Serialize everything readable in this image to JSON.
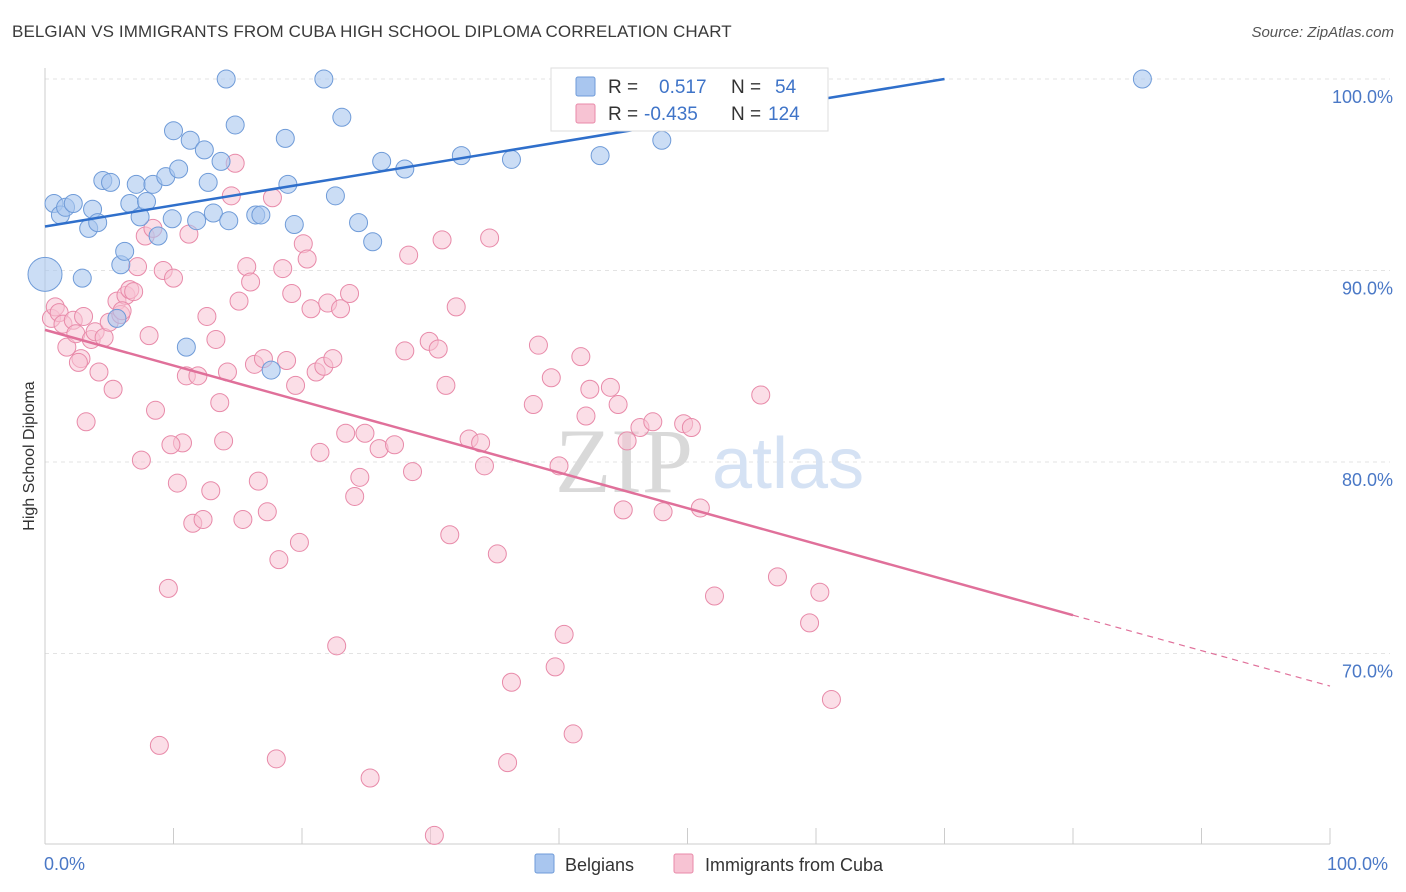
{
  "title": "BELGIAN VS IMMIGRANTS FROM CUBA HIGH SCHOOL DIPLOMA CORRELATION CHART",
  "source": "Source: ZipAtlas.com",
  "watermark": {
    "zip": "ZIP",
    "atlas": "atlas"
  },
  "legend_top": {
    "r_label": "R =",
    "n_label": "N =",
    "rows": [
      {
        "r": "0.517",
        "n": "54",
        "color": "#a9c6ef"
      },
      {
        "r": "-0.435",
        "n": "124",
        "color": "#f4b4c8"
      }
    ]
  },
  "colors": {
    "belgians_fill": "#a9c6ef",
    "belgians_stroke": "#6f9bd8",
    "belgians_line": "#2f6fcb",
    "cuba_fill": "#f7c3d3",
    "cuba_stroke": "#e88aa9",
    "cuba_line": "#e0709a",
    "grid": "#e3e3e3",
    "axis_text": "#4a78c6"
  },
  "chart_data": {
    "type": "scatter",
    "title": "BELGIAN VS IMMIGRANTS FROM CUBA HIGH SCHOOL DIPLOMA CORRELATION CHART",
    "xlabel": "",
    "ylabel": "High School Diploma",
    "x_tick_labels": [
      "0.0%",
      "100.0%"
    ],
    "y_tick_labels": [
      "100.0%",
      "90.0%",
      "80.0%",
      "70.0%"
    ],
    "y_ticks": [
      100,
      90,
      80,
      70
    ],
    "xlim": [
      0,
      100
    ],
    "ylim": [
      59.7,
      101.5
    ],
    "grid": true,
    "legend_position": "bottom",
    "series": [
      {
        "name": "Belgians",
        "r": 0.517,
        "n": 54,
        "trend": {
          "x": [
            0,
            70
          ],
          "y": [
            92.3,
            100
          ]
        },
        "points": [
          [
            0,
            89.8
          ],
          [
            0.7,
            93.5
          ],
          [
            1.2,
            92.9
          ],
          [
            1.6,
            93.3
          ],
          [
            2.2,
            93.5
          ],
          [
            2.9,
            89.6
          ],
          [
            3.4,
            92.2
          ],
          [
            3.7,
            93.2
          ],
          [
            4.1,
            92.5
          ],
          [
            4.5,
            94.7
          ],
          [
            5.1,
            94.6
          ],
          [
            5.6,
            87.5
          ],
          [
            5.9,
            90.3
          ],
          [
            6.2,
            91.0
          ],
          [
            6.6,
            93.5
          ],
          [
            7.1,
            94.5
          ],
          [
            7.4,
            92.8
          ],
          [
            7.9,
            93.6
          ],
          [
            8.4,
            94.5
          ],
          [
            8.8,
            91.8
          ],
          [
            9.4,
            94.9
          ],
          [
            9.9,
            92.7
          ],
          [
            10.0,
            97.3
          ],
          [
            10.4,
            95.3
          ],
          [
            11.0,
            86.0
          ],
          [
            11.3,
            96.8
          ],
          [
            11.8,
            92.6
          ],
          [
            12.4,
            96.3
          ],
          [
            12.7,
            94.6
          ],
          [
            13.1,
            93.0
          ],
          [
            13.7,
            95.7
          ],
          [
            14.1,
            100.0
          ],
          [
            14.3,
            92.6
          ],
          [
            14.8,
            97.6
          ],
          [
            16.4,
            92.9
          ],
          [
            16.8,
            92.9
          ],
          [
            17.6,
            84.8
          ],
          [
            18.7,
            96.9
          ],
          [
            18.9,
            94.5
          ],
          [
            19.4,
            92.4
          ],
          [
            21.7,
            100.0
          ],
          [
            22.6,
            93.9
          ],
          [
            23.1,
            98.0
          ],
          [
            24.4,
            92.5
          ],
          [
            25.5,
            91.5
          ],
          [
            26.2,
            95.7
          ],
          [
            28.0,
            95.3
          ],
          [
            32.4,
            96.0
          ],
          [
            36.3,
            95.8
          ],
          [
            43.2,
            96.0
          ],
          [
            43.6,
            100.0
          ],
          [
            53.0,
            100.0
          ],
          [
            85.4,
            100.0
          ],
          [
            48.0,
            96.8
          ]
        ]
      },
      {
        "name": "Immigrants from Cuba",
        "r": -0.435,
        "n": 124,
        "trend": {
          "x": [
            0,
            80
          ],
          "y": [
            86.9,
            72.0
          ]
        },
        "trend_dashed": {
          "x": [
            80,
            100
          ],
          "y": [
            72.0,
            68.3
          ]
        },
        "points": [
          [
            0.5,
            87.5
          ],
          [
            0.8,
            88.1
          ],
          [
            1.1,
            87.8
          ],
          [
            1.4,
            87.2
          ],
          [
            1.7,
            86.0
          ],
          [
            2.2,
            87.4
          ],
          [
            2.4,
            86.7
          ],
          [
            2.8,
            85.4
          ],
          [
            3.0,
            87.6
          ],
          [
            3.2,
            82.1
          ],
          [
            3.6,
            86.4
          ],
          [
            3.9,
            86.8
          ],
          [
            4.2,
            84.7
          ],
          [
            4.6,
            86.5
          ],
          [
            5.0,
            87.3
          ],
          [
            5.3,
            83.8
          ],
          [
            5.6,
            88.4
          ],
          [
            5.9,
            87.7
          ],
          [
            6.3,
            88.7
          ],
          [
            6.6,
            89.0
          ],
          [
            6.9,
            88.9
          ],
          [
            7.2,
            90.2
          ],
          [
            7.5,
            80.1
          ],
          [
            7.8,
            91.8
          ],
          [
            8.1,
            86.6
          ],
          [
            8.4,
            92.2
          ],
          [
            8.6,
            82.7
          ],
          [
            8.9,
            65.2
          ],
          [
            9.2,
            90.0
          ],
          [
            9.6,
            73.4
          ],
          [
            10.0,
            89.6
          ],
          [
            10.3,
            78.9
          ],
          [
            10.7,
            81.0
          ],
          [
            11.0,
            84.5
          ],
          [
            11.2,
            91.9
          ],
          [
            11.5,
            76.8
          ],
          [
            11.9,
            84.5
          ],
          [
            12.3,
            77.0
          ],
          [
            12.6,
            87.6
          ],
          [
            12.9,
            78.5
          ],
          [
            13.3,
            86.4
          ],
          [
            13.6,
            83.1
          ],
          [
            13.9,
            81.1
          ],
          [
            14.2,
            84.7
          ],
          [
            14.5,
            93.9
          ],
          [
            14.8,
            95.6
          ],
          [
            15.1,
            88.4
          ],
          [
            15.4,
            77.0
          ],
          [
            15.7,
            90.2
          ],
          [
            16.0,
            89.4
          ],
          [
            16.3,
            85.1
          ],
          [
            16.6,
            79.0
          ],
          [
            17.0,
            85.4
          ],
          [
            17.3,
            77.4
          ],
          [
            17.7,
            93.8
          ],
          [
            18.0,
            64.5
          ],
          [
            18.2,
            74.9
          ],
          [
            18.5,
            90.1
          ],
          [
            18.8,
            85.3
          ],
          [
            19.2,
            88.8
          ],
          [
            19.5,
            84.0
          ],
          [
            19.8,
            75.8
          ],
          [
            20.1,
            91.4
          ],
          [
            20.4,
            90.6
          ],
          [
            20.7,
            88.0
          ],
          [
            21.1,
            84.7
          ],
          [
            21.4,
            80.5
          ],
          [
            21.7,
            85.0
          ],
          [
            22.0,
            88.3
          ],
          [
            22.4,
            85.4
          ],
          [
            22.7,
            70.4
          ],
          [
            23.0,
            88.0
          ],
          [
            23.4,
            81.5
          ],
          [
            23.7,
            88.8
          ],
          [
            24.1,
            78.2
          ],
          [
            24.5,
            79.2
          ],
          [
            24.9,
            81.5
          ],
          [
            25.3,
            63.5
          ],
          [
            26.0,
            80.7
          ],
          [
            27.2,
            80.9
          ],
          [
            28.0,
            85.8
          ],
          [
            28.3,
            90.8
          ],
          [
            28.6,
            79.5
          ],
          [
            29.9,
            86.3
          ],
          [
            30.3,
            60.5
          ],
          [
            30.6,
            85.9
          ],
          [
            30.9,
            91.6
          ],
          [
            31.2,
            84.0
          ],
          [
            31.5,
            76.2
          ],
          [
            32.0,
            88.1
          ],
          [
            33.0,
            81.2
          ],
          [
            33.9,
            81.0
          ],
          [
            34.2,
            79.8
          ],
          [
            34.6,
            91.7
          ],
          [
            35.2,
            75.2
          ],
          [
            36.0,
            64.3
          ],
          [
            36.3,
            68.5
          ],
          [
            38.0,
            83.0
          ],
          [
            38.4,
            86.1
          ],
          [
            39.4,
            84.4
          ],
          [
            39.7,
            69.3
          ],
          [
            40.0,
            79.8
          ],
          [
            40.4,
            71.0
          ],
          [
            41.1,
            65.8
          ],
          [
            41.7,
            85.5
          ],
          [
            42.1,
            82.4
          ],
          [
            42.4,
            83.8
          ],
          [
            44.0,
            83.9
          ],
          [
            44.6,
            83.0
          ],
          [
            45.0,
            77.5
          ],
          [
            45.3,
            81.1
          ],
          [
            46.3,
            81.8
          ],
          [
            47.3,
            82.1
          ],
          [
            48.1,
            77.4
          ],
          [
            49.7,
            82.0
          ],
          [
            50.3,
            81.8
          ],
          [
            51.0,
            77.6
          ],
          [
            52.1,
            73.0
          ],
          [
            55.7,
            83.5
          ],
          [
            57.0,
            74.0
          ],
          [
            59.5,
            71.6
          ],
          [
            60.3,
            73.2
          ],
          [
            61.2,
            67.6
          ],
          [
            9.8,
            80.9
          ],
          [
            6.0,
            87.9
          ],
          [
            2.6,
            85.2
          ]
        ]
      }
    ]
  }
}
